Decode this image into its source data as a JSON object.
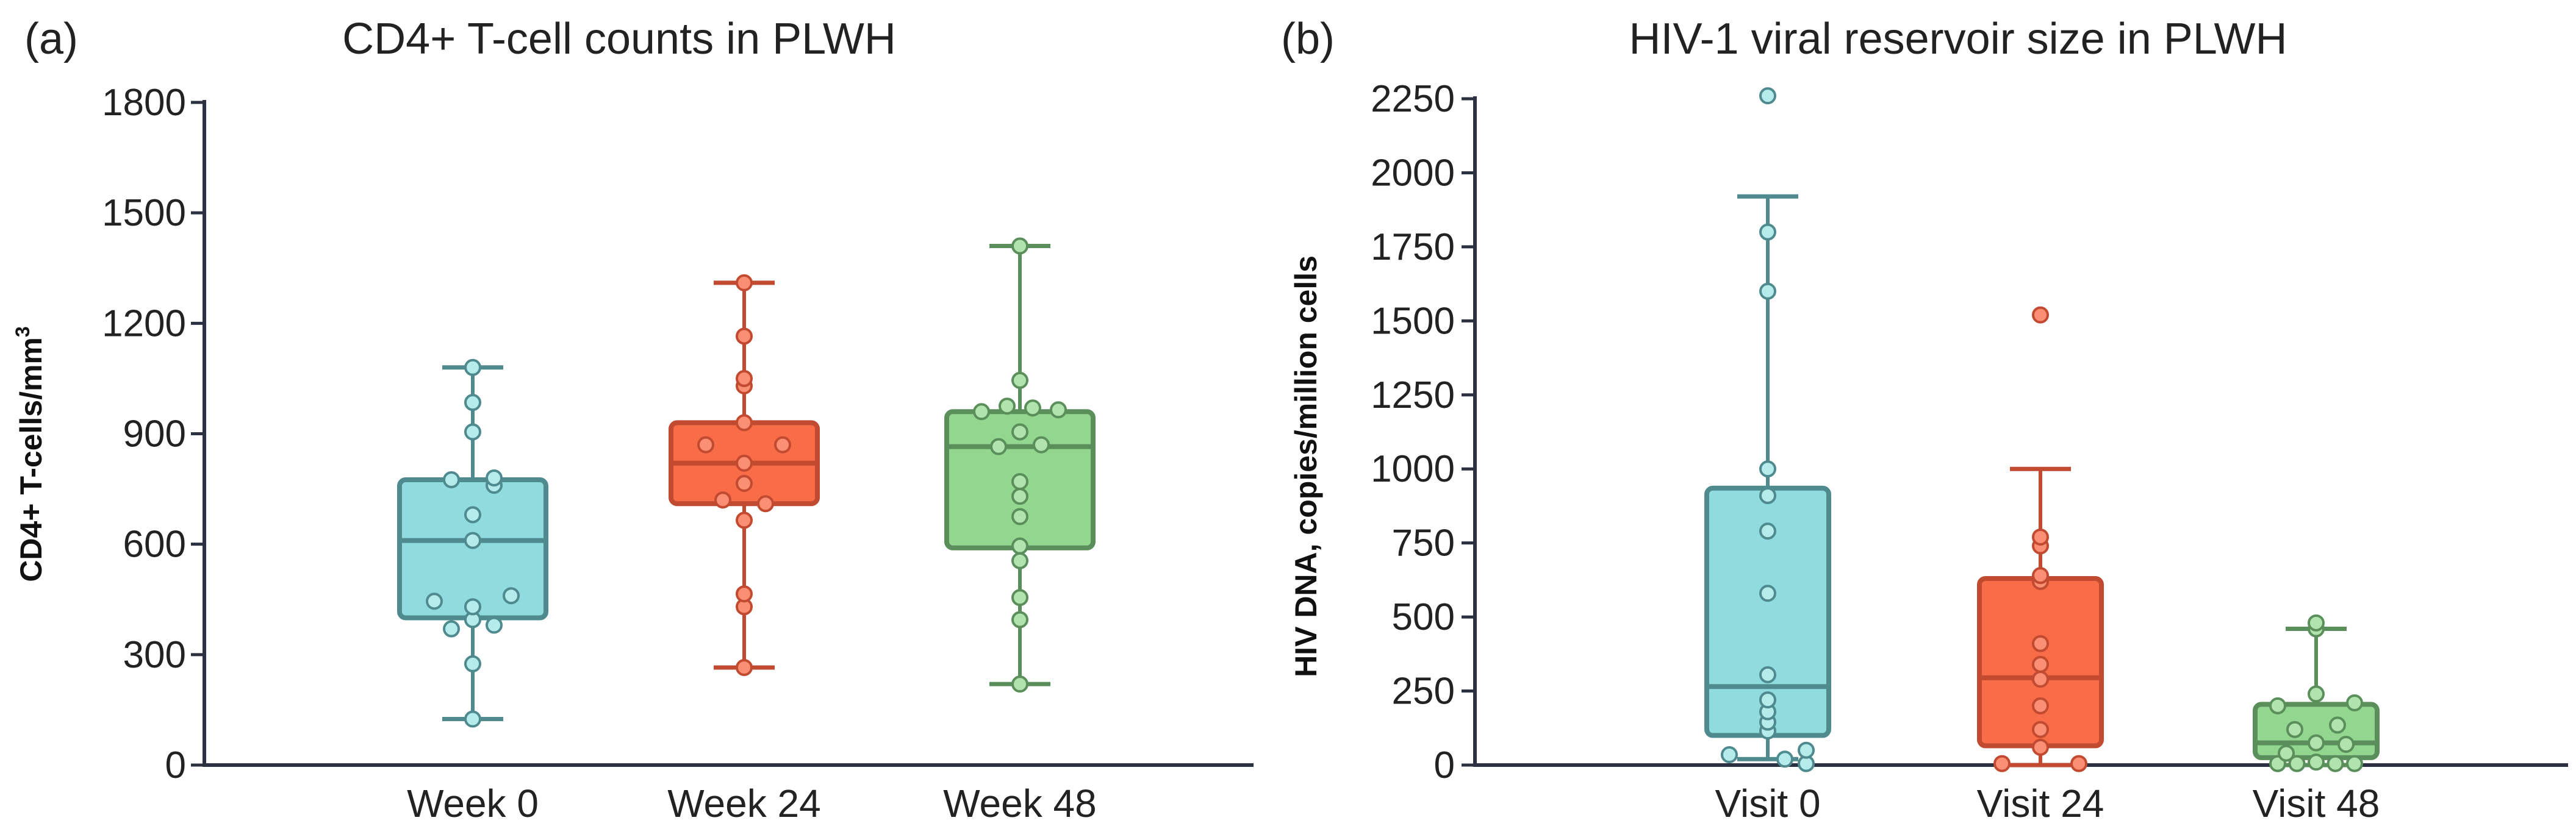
{
  "panels": [
    {
      "label": "(a)",
      "title": "CD4+ T-cell counts in PLWH",
      "ylabel_main": "CD4+ T-cells/mm",
      "ylabel_sup": "3"
    },
    {
      "label": "(b)",
      "title": "HIV-1 viral reservoir size in PLWH",
      "ylabel_main": "HIV DNA, copies/million cells",
      "ylabel_sup": ""
    }
  ],
  "chart_data": [
    {
      "type": "box",
      "title": "CD4+ T-cell counts in PLWH",
      "ylabel": "CD4+ T-cells/mm³",
      "ylim": [
        0,
        1800
      ],
      "yticks": [
        0,
        300,
        600,
        900,
        1200,
        1500,
        1800
      ],
      "ytick_labels": [
        "0",
        "300",
        "600",
        "900",
        "1200",
        "1500",
        "1800"
      ],
      "categories": [
        "Week 0",
        "Week 24",
        "Week 48"
      ],
      "series": [
        {
          "name": "Week 0",
          "fill": "#8fdbdd",
          "stroke": "#4e8a8e",
          "point_fill": "#b6ebec",
          "min": 125,
          "q1": 400,
          "median": 610,
          "q3": 775,
          "max": 1080,
          "points": [
            125,
            275,
            370,
            380,
            395,
            430,
            445,
            460,
            610,
            680,
            760,
            775,
            780,
            905,
            985,
            1080
          ],
          "offsets": [
            0,
            0,
            -0.5,
            0.5,
            0,
            0,
            -0.9,
            0.9,
            0,
            0,
            0.5,
            -0.5,
            0.5,
            0,
            0,
            0
          ]
        },
        {
          "name": "Week 24",
          "fill": "#f96c48",
          "stroke": "#c24a30",
          "point_fill": "#fb8f74",
          "min": 265,
          "q1": 710,
          "median": 820,
          "q3": 930,
          "max": 1310,
          "points": [
            265,
            430,
            465,
            665,
            710,
            720,
            765,
            820,
            870,
            870,
            930,
            1030,
            1050,
            1165,
            1310
          ],
          "offsets": [
            0,
            0,
            0,
            0,
            0.5,
            -0.5,
            0,
            0,
            -0.9,
            0.9,
            0,
            0,
            0,
            0,
            0
          ]
        },
        {
          "name": "Week 48",
          "fill": "#92d68f",
          "stroke": "#5a8f5b",
          "point_fill": "#b1e3ae",
          "min": 220,
          "q1": 590,
          "median": 865,
          "q3": 960,
          "max": 1410,
          "points": [
            220,
            395,
            455,
            555,
            595,
            675,
            730,
            770,
            865,
            870,
            905,
            960,
            965,
            970,
            975,
            1045,
            1410
          ],
          "offsets": [
            0,
            0,
            0,
            0,
            0,
            0,
            0,
            0,
            -0.5,
            0.5,
            0,
            -0.9,
            0.9,
            0.3,
            -0.3,
            0,
            0
          ]
        }
      ]
    },
    {
      "type": "box",
      "title": "HIV-1 viral reservoir size in PLWH",
      "ylabel": "HIV DNA, copies/million cells",
      "ylim": [
        0,
        2250
      ],
      "yticks": [
        0,
        250,
        500,
        750,
        1000,
        1250,
        1500,
        1750,
        2000,
        2250
      ],
      "ytick_labels": [
        "0",
        "250",
        "500",
        "750",
        "1000",
        "1250",
        "1500",
        "1750",
        "2000",
        "2250"
      ],
      "categories": [
        "Visit 0",
        "Visit 24",
        "Visit 48"
      ],
      "series": [
        {
          "name": "Visit 0",
          "fill": "#8fdbdd",
          "stroke": "#4e8a8e",
          "point_fill": "#b6ebec",
          "min": 20,
          "q1": 100,
          "median": 265,
          "q3": 935,
          "max": 1920,
          "points": [
            5,
            20,
            35,
            50,
            115,
            145,
            180,
            220,
            305,
            580,
            790,
            910,
            1000,
            1600,
            1800,
            2260
          ],
          "offsets": [
            0.9,
            0.4,
            -0.9,
            0.9,
            0,
            0,
            0,
            0,
            0,
            0,
            0,
            0,
            0,
            0,
            0,
            0
          ]
        },
        {
          "name": "Visit 24",
          "fill": "#f96c48",
          "stroke": "#c24a30",
          "point_fill": "#fb8f74",
          "min": 0,
          "q1": 65,
          "median": 295,
          "q3": 630,
          "max": 1000,
          "points": [
            5,
            5,
            60,
            120,
            200,
            290,
            340,
            410,
            620,
            640,
            740,
            770,
            1520
          ],
          "offsets": [
            -0.9,
            0.9,
            0,
            0,
            0,
            0,
            0,
            0,
            0,
            0,
            0,
            0,
            0
          ]
        },
        {
          "name": "Visit 48",
          "fill": "#92d68f",
          "stroke": "#5a8f5b",
          "point_fill": "#b1e3ae",
          "min": 0,
          "q1": 25,
          "median": 75,
          "q3": 205,
          "max": 460,
          "points": [
            5,
            5,
            5,
            5,
            10,
            40,
            70,
            75,
            120,
            135,
            200,
            210,
            240,
            460,
            480
          ],
          "offsets": [
            -0.9,
            0.9,
            -0.45,
            0.45,
            0,
            -0.7,
            0.7,
            0,
            -0.5,
            0.5,
            -0.9,
            0.9,
            0,
            0,
            0
          ]
        }
      ]
    }
  ]
}
